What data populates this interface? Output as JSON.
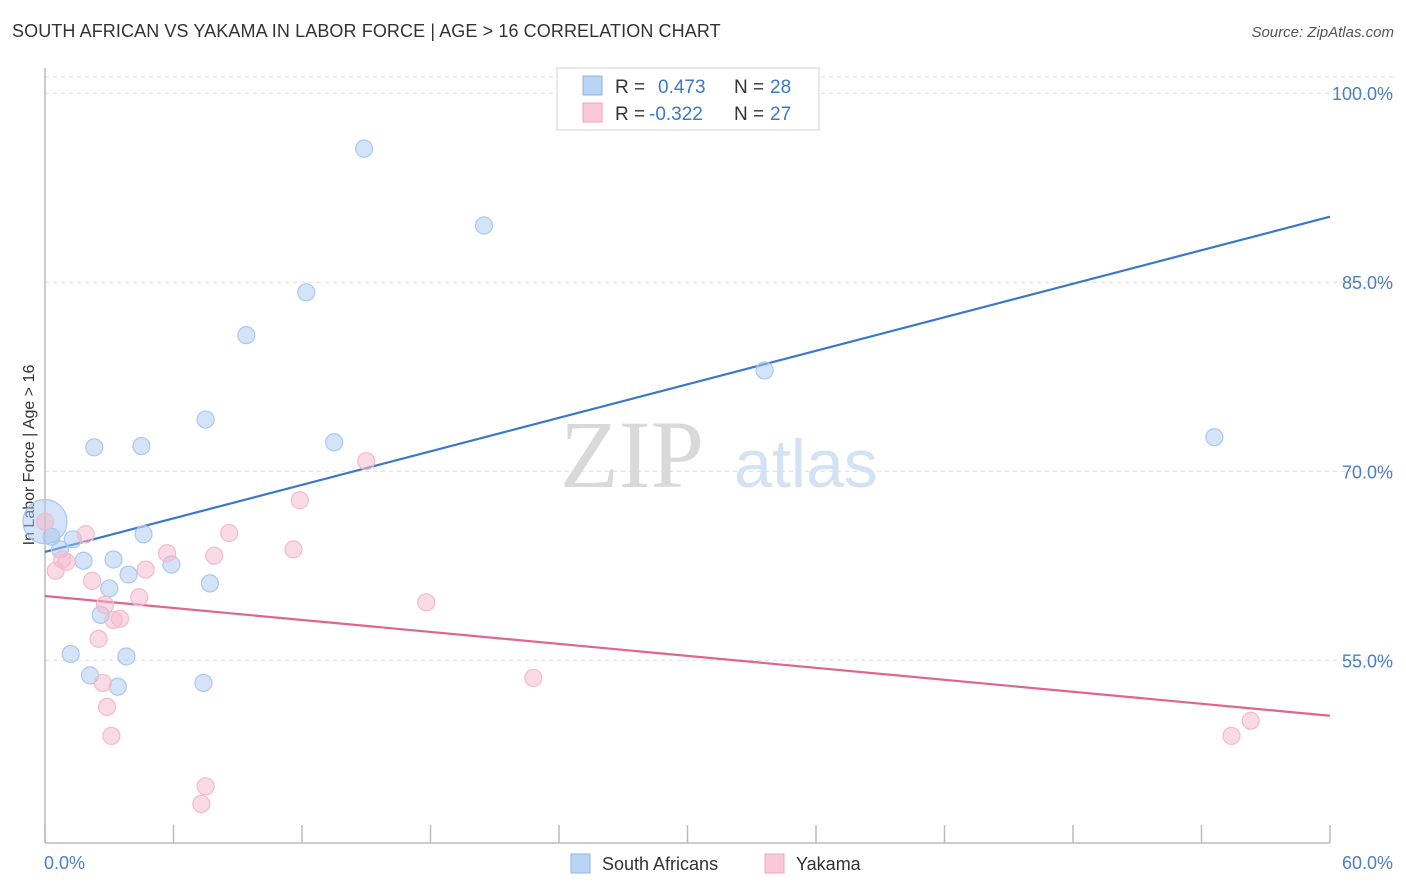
{
  "title": "SOUTH AFRICAN VS YAKAMA IN LABOR FORCE | AGE > 16 CORRELATION CHART",
  "source": "Source: ZipAtlas.com",
  "watermark": {
    "zip": "ZIP",
    "atlas": "atlas"
  },
  "chart_data": {
    "type": "scatter",
    "xlabel": "",
    "ylabel": "In Labor Force | Age > 16",
    "xlim": [
      0,
      60
    ],
    "ylim": [
      40.5,
      102
    ],
    "x_tick_labels": [
      "0.0%",
      "60.0%"
    ],
    "y_ticks": [
      55,
      70,
      85,
      100
    ],
    "y_tick_labels": [
      "55.0%",
      "70.0%",
      "85.0%",
      "100.0%"
    ],
    "legend_stats": [
      {
        "r_label": "R =",
        "r_value": "0.473",
        "n_label": "N =",
        "n_value": "28"
      },
      {
        "r_label": "R =",
        "r_value": "-0.322",
        "n_label": "N =",
        "n_value": "27"
      }
    ],
    "series": [
      {
        "name": "South Africans",
        "color": "#a9c8ef",
        "line_color": "#3a78c8",
        "trend": [
          [
            0,
            63.6
          ],
          [
            60,
            90.2
          ]
        ],
        "points": [
          [
            0.0,
            66.0,
            1
          ],
          [
            0.3,
            64.8,
            0
          ],
          [
            0.7,
            63.8,
            0
          ],
          [
            1.3,
            64.6,
            0
          ],
          [
            1.8,
            62.9,
            0
          ],
          [
            2.3,
            71.9,
            0
          ],
          [
            3.2,
            63.0,
            0
          ],
          [
            4.5,
            72.0,
            0
          ],
          [
            3.9,
            61.8,
            0
          ],
          [
            3.0,
            60.7,
            0
          ],
          [
            2.6,
            58.6,
            0
          ],
          [
            1.2,
            55.5,
            0
          ],
          [
            2.1,
            53.8,
            0
          ],
          [
            3.4,
            52.9,
            0
          ],
          [
            3.8,
            55.3,
            0
          ],
          [
            4.6,
            65.0,
            0
          ],
          [
            5.9,
            62.6,
            0
          ],
          [
            7.5,
            74.1,
            0
          ],
          [
            7.7,
            61.1,
            0
          ],
          [
            7.4,
            53.2,
            0
          ],
          [
            9.4,
            80.8,
            0
          ],
          [
            12.2,
            84.2,
            0
          ],
          [
            13.5,
            72.3,
            0
          ],
          [
            14.9,
            95.6,
            0
          ],
          [
            20.5,
            89.5,
            0
          ],
          [
            33.6,
            78.0,
            0
          ],
          [
            54.6,
            72.7,
            0
          ]
        ]
      },
      {
        "name": "Yakama",
        "color": "#f6b8cb",
        "line_color": "#e0648e",
        "trend": [
          [
            0,
            60.1
          ],
          [
            60,
            50.6
          ]
        ],
        "points": [
          [
            0.0,
            66.0,
            0
          ],
          [
            0.5,
            62.1,
            0
          ],
          [
            0.8,
            63.0,
            0
          ],
          [
            1.0,
            62.8,
            0
          ],
          [
            1.9,
            65.0,
            0
          ],
          [
            2.2,
            61.3,
            0
          ],
          [
            2.5,
            56.7,
            0
          ],
          [
            2.7,
            53.2,
            0
          ],
          [
            2.9,
            51.3,
            0
          ],
          [
            2.8,
            59.4,
            0
          ],
          [
            3.2,
            58.2,
            0
          ],
          [
            3.5,
            58.3,
            0
          ],
          [
            3.1,
            49.0,
            0
          ],
          [
            4.4,
            60.0,
            0
          ],
          [
            4.7,
            62.2,
            0
          ],
          [
            5.7,
            63.5,
            0
          ],
          [
            7.5,
            45.0,
            0
          ],
          [
            7.3,
            43.6,
            0
          ],
          [
            7.9,
            63.3,
            0
          ],
          [
            8.6,
            65.1,
            0
          ],
          [
            11.6,
            63.8,
            0
          ],
          [
            11.9,
            67.7,
            0
          ],
          [
            15.0,
            70.8,
            0
          ],
          [
            17.8,
            59.6,
            0
          ],
          [
            22.8,
            53.6,
            0
          ],
          [
            55.4,
            49.0,
            0
          ],
          [
            56.3,
            50.2,
            0
          ]
        ]
      }
    ]
  }
}
